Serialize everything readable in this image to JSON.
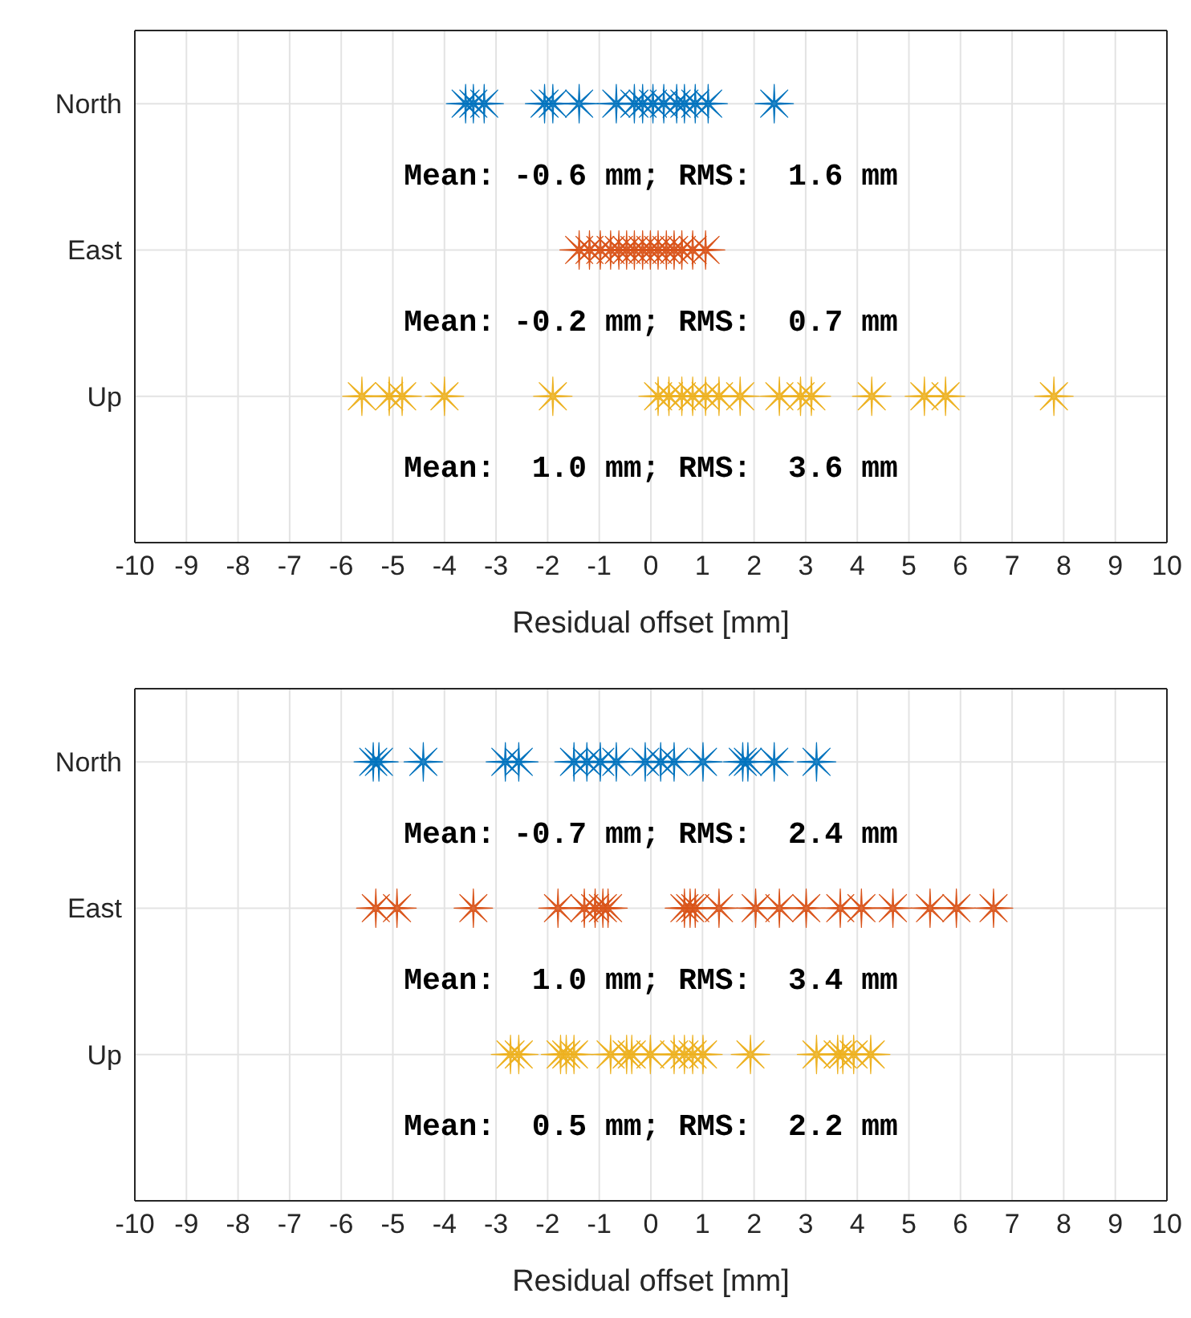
{
  "chart_data": [
    {
      "type": "scatter",
      "orientation": "horizontal",
      "categories": [
        "North",
        "East",
        "Up"
      ],
      "xlabel": "Residual offset [mm]",
      "xlim": [
        -10,
        10
      ],
      "xticks": [
        -10,
        -9,
        -8,
        -7,
        -6,
        -5,
        -4,
        -3,
        -2,
        -1,
        0,
        1,
        2,
        3,
        4,
        5,
        6,
        7,
        8,
        9,
        10
      ],
      "grid": true,
      "marker": "star",
      "series": [
        {
          "color": "#0072bd",
          "x": [
            "North",
            "North",
            "North",
            "North",
            "North",
            "North",
            "North",
            "North",
            "North",
            "North",
            "North",
            "North",
            "North",
            "North",
            "North",
            "North"
          ],
          "values": [
            -3.59,
            -3.44,
            -3.23,
            -2.06,
            -1.9,
            -1.39,
            -0.67,
            -0.32,
            -0.16,
            0.04,
            0.25,
            0.5,
            0.65,
            0.86,
            1.11,
            2.39
          ]
        },
        {
          "color": "#d95319",
          "x": [
            "East",
            "East",
            "East",
            "East",
            "East",
            "East",
            "East",
            "East",
            "East",
            "East",
            "East",
            "East",
            "East",
            "East",
            "East"
          ],
          "values": [
            -1.39,
            -1.19,
            -0.98,
            -0.78,
            -0.62,
            -0.47,
            -0.32,
            -0.16,
            -0.01,
            0.14,
            0.3,
            0.45,
            0.6,
            0.81,
            1.06
          ]
        },
        {
          "color": "#edb120",
          "x": [
            "Up",
            "Up",
            "Up",
            "Up",
            "Up",
            "Up",
            "Up",
            "Up",
            "Up",
            "Up",
            "Up",
            "Up",
            "Up",
            "Up",
            "Up",
            "Up",
            "Up",
            "Up",
            "Up"
          ],
          "values": [
            -5.6,
            -5.07,
            -4.82,
            -4.0,
            -1.9,
            0.14,
            0.35,
            0.6,
            0.81,
            1.06,
            1.32,
            1.73,
            2.49,
            2.9,
            3.11,
            4.28,
            5.3,
            5.71,
            7.81
          ]
        }
      ],
      "annotations": [
        "Mean: -0.6 mm; RMS:  1.6 mm",
        "Mean: -0.2 mm; RMS:  0.7 mm",
        "Mean:  1.0 mm; RMS:  3.6 mm"
      ]
    },
    {
      "type": "scatter",
      "orientation": "horizontal",
      "categories": [
        "North",
        "East",
        "Up"
      ],
      "xlabel": "Residual offset [mm]",
      "xlim": [
        -10,
        10
      ],
      "xticks": [
        -10,
        -9,
        -8,
        -7,
        -6,
        -5,
        -4,
        -3,
        -2,
        -1,
        0,
        1,
        2,
        3,
        4,
        5,
        6,
        7,
        8,
        9,
        10
      ],
      "grid": true,
      "marker": "star",
      "series": [
        {
          "color": "#0072bd",
          "x": [
            "North",
            "North",
            "North",
            "North",
            "North",
            "North",
            "North",
            "North",
            "North",
            "North",
            "North",
            "North",
            "North",
            "North",
            "North",
            "North",
            "North"
          ],
          "values": [
            -5.38,
            -5.27,
            -4.41,
            -2.82,
            -2.56,
            -1.49,
            -1.24,
            -0.98,
            -0.67,
            -0.11,
            0.19,
            0.45,
            1.01,
            1.78,
            1.88,
            2.39,
            3.21
          ]
        },
        {
          "color": "#d95319",
          "x": [
            "East",
            "East",
            "East",
            "East",
            "East",
            "East",
            "East",
            "East",
            "East",
            "East",
            "East",
            "East",
            "East",
            "East",
            "East",
            "East",
            "East",
            "East",
            "East",
            "East",
            "East"
          ],
          "values": [
            -5.33,
            -4.92,
            -3.44,
            -1.8,
            -1.29,
            -1.08,
            -0.93,
            -0.83,
            0.65,
            0.76,
            0.86,
            1.32,
            2.03,
            2.49,
            3.01,
            3.67,
            4.08,
            4.69,
            5.41,
            5.92,
            6.64
          ]
        },
        {
          "color": "#edb120",
          "x": [
            "Up",
            "Up",
            "Up",
            "Up",
            "Up",
            "Up",
            "Up",
            "Up",
            "Up",
            "Up",
            "Up",
            "Up",
            "Up",
            "Up",
            "Up",
            "Up",
            "Up",
            "Up",
            "Up"
          ],
          "values": [
            -2.72,
            -2.56,
            -1.75,
            -1.64,
            -1.49,
            -0.78,
            -0.47,
            -0.37,
            -0.01,
            0.45,
            0.65,
            0.81,
            1.01,
            1.93,
            3.21,
            3.62,
            3.72,
            3.93,
            4.26
          ]
        }
      ],
      "annotations": [
        "Mean: -0.7 mm; RMS:  2.4 mm",
        "Mean:  1.0 mm; RMS:  3.4 mm",
        "Mean:  0.5 mm; RMS:  2.2 mm"
      ]
    }
  ]
}
